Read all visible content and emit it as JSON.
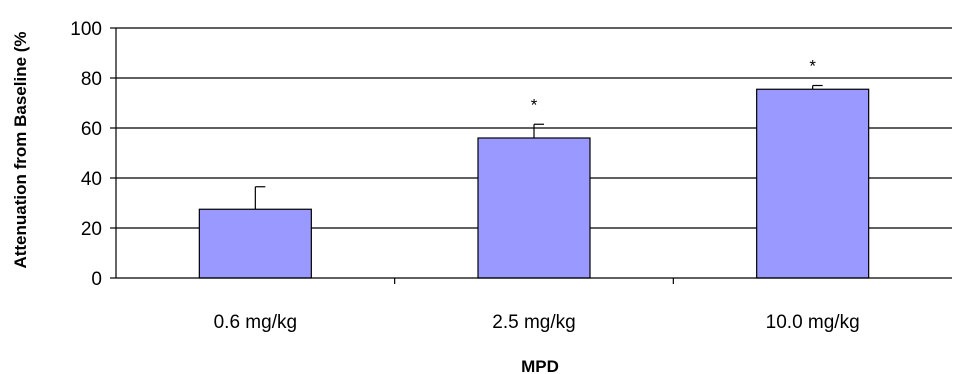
{
  "chart_data": {
    "type": "bar",
    "categories": [
      "0.6 mg/kg",
      "2.5 mg/kg",
      "10.0 mg/kg"
    ],
    "values": [
      27.5,
      56,
      75.5
    ],
    "error": [
      9,
      5.5,
      1.5
    ],
    "annotations": [
      "",
      "*",
      "*"
    ],
    "xlabel": "MPD",
    "ylabel": "Attenuation from Baseline (%",
    "ylim": [
      0,
      100
    ],
    "yticks": [
      0,
      20,
      40,
      60,
      80,
      100
    ],
    "grid": true,
    "bar_color": "#9999ff",
    "bar_edge_color": "#000000"
  }
}
